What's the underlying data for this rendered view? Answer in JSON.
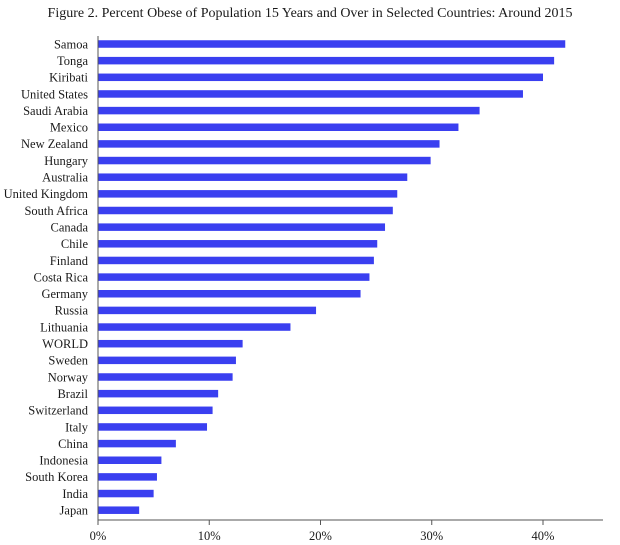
{
  "chart_data": {
    "type": "bar",
    "orientation": "horizontal",
    "title": "Figure 2. Percent Obese of Population 15 Years and Over in Selected Countries: Around 2015",
    "xlabel": "",
    "ylabel": "",
    "xlim": [
      0,
      45
    ],
    "x_ticks": [
      0,
      10,
      20,
      30,
      40
    ],
    "x_tick_labels": [
      "0%",
      "10%",
      "20%",
      "30%",
      "40%"
    ],
    "grid": false,
    "legend": "none",
    "bar_color": "#3a3ff0",
    "categories": [
      "Samoa",
      "Tonga",
      "Kiribati",
      "United States",
      "Saudi Arabia",
      "Mexico",
      "New Zealand",
      "Hungary",
      "Australia",
      "United Kingdom",
      "South Africa",
      "Canada",
      "Chile",
      "Finland",
      "Costa Rica",
      "Germany",
      "Russia",
      "Lithuania",
      "WORLD",
      "Sweden",
      "Norway",
      "Brazil",
      "Switzerland",
      "Italy",
      "China",
      "Indonesia",
      "South Korea",
      "India",
      "Japan"
    ],
    "values": [
      42.0,
      41.0,
      40.0,
      38.2,
      34.3,
      32.4,
      30.7,
      29.9,
      27.8,
      26.9,
      26.5,
      25.8,
      25.1,
      24.8,
      24.4,
      23.6,
      19.6,
      17.3,
      13.0,
      12.4,
      12.1,
      10.8,
      10.3,
      9.8,
      7.0,
      5.7,
      5.3,
      5.0,
      3.7
    ]
  }
}
